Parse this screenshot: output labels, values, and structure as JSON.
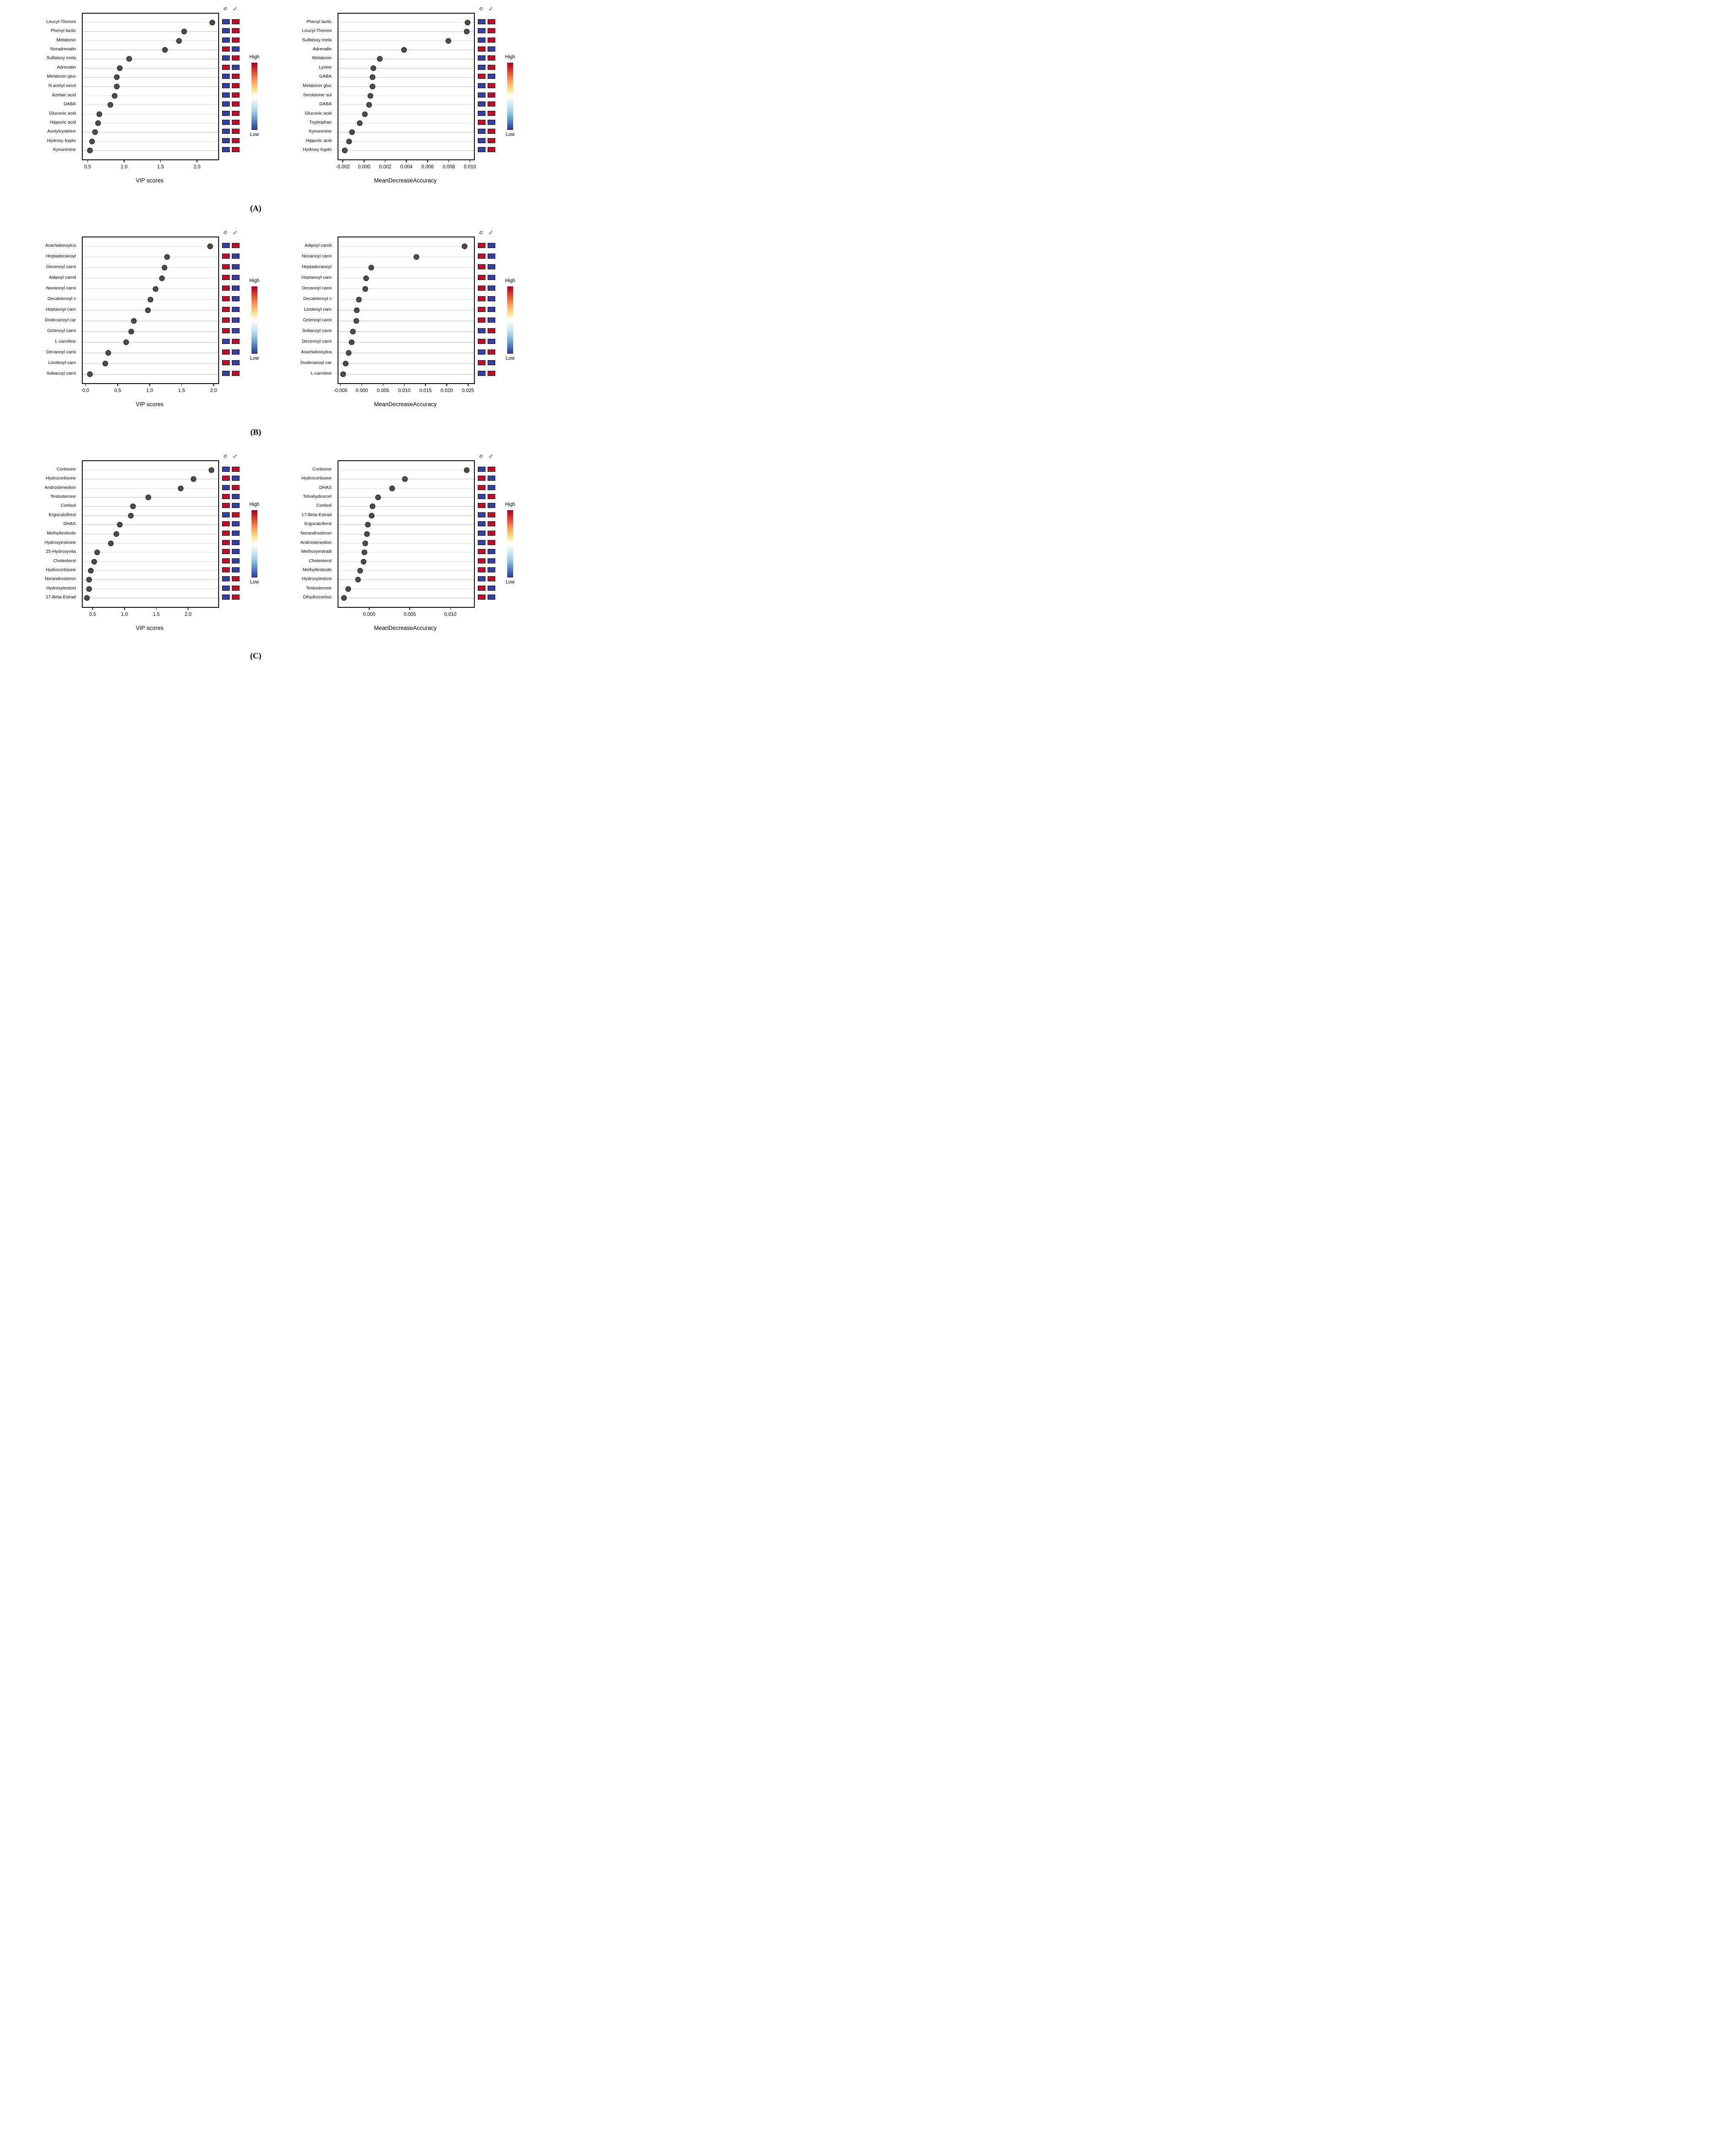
{
  "figure": {
    "background": "#ffffff"
  },
  "section_tags": [
    "(A)",
    "(B)",
    "(C)"
  ],
  "heat_columns": [
    "0",
    "1"
  ],
  "colorbar_labels": {
    "high": "High",
    "low": "Low"
  },
  "colors": {
    "dot_fill": "#4d4d4d",
    "dot_stroke": "#000000",
    "gridline": "#d7d7d7",
    "box_border": "#000000",
    "heat_red": "#c20c2c",
    "heat_blue": "#3540a5",
    "gradient": [
      "#a50026 0%",
      "#d73027 10%",
      "#f46d43 20%",
      "#fdae61 30%",
      "#fee090 40%",
      "#fbfbdc 47%",
      "#ffffff 52%",
      "#dff2f7 58%",
      "#abd9e9 70%",
      "#74add1 80%",
      "#4575b4 90%",
      "#313695 100%"
    ]
  },
  "chart_data": [
    {
      "type": "scatter",
      "section": "A",
      "side": "left",
      "xlabel": "VIP scores",
      "xlim": [
        0.42,
        2.28
      ],
      "ticks": [
        {
          "v": 0.5,
          "t": "0.5"
        },
        {
          "v": 1.0,
          "t": "1.0"
        },
        {
          "v": 1.5,
          "t": "1.5"
        },
        {
          "v": 2.0,
          "t": "2.0"
        }
      ],
      "categories": [
        "Leucyl-Threoni",
        "Phenyl lactic",
        "Melatonin",
        "Noradrenalin",
        "Sulfatoxy mela",
        "Adrenalin",
        "Melatonin gluc",
        "N acetyl serot",
        "Azelaic acid",
        "DABA",
        "Gluconic acid",
        "Hippuric acid",
        "Acetylcysteine",
        "Hydroxy trypto",
        "Kynurenine"
      ],
      "values": [
        2.2,
        1.81,
        1.74,
        1.55,
        1.06,
        0.93,
        0.89,
        0.89,
        0.86,
        0.8,
        0.65,
        0.63,
        0.59,
        0.55,
        0.52
      ],
      "heat": [
        [
          "blue",
          "red"
        ],
        [
          "blue",
          "red"
        ],
        [
          "blue",
          "red"
        ],
        [
          "red",
          "blue"
        ],
        [
          "blue",
          "red"
        ],
        [
          "red",
          "blue"
        ],
        [
          "blue",
          "red"
        ],
        [
          "blue",
          "red"
        ],
        [
          "blue",
          "red"
        ],
        [
          "blue",
          "red"
        ],
        [
          "blue",
          "red"
        ],
        [
          "blue",
          "red"
        ],
        [
          "blue",
          "red"
        ],
        [
          "blue",
          "red"
        ],
        [
          "blue",
          "red"
        ]
      ]
    },
    {
      "type": "scatter",
      "section": "A",
      "side": "right",
      "xlabel": "MeanDecreaseAccuracy",
      "xlim": [
        -0.0025,
        0.0103
      ],
      "ticks": [
        {
          "v": -0.002,
          "t": "-0.002"
        },
        {
          "v": 0.0,
          "t": "0.000"
        },
        {
          "v": 0.002,
          "t": "0.002"
        },
        {
          "v": 0.004,
          "t": "0.004"
        },
        {
          "v": 0.006,
          "t": "0.006"
        },
        {
          "v": 0.008,
          "t": "0.008"
        },
        {
          "v": 0.01,
          "t": "0.010"
        }
      ],
      "categories": [
        "Phenyl lactic",
        "Leucyl-Threoni",
        "Sulfatoxy mela",
        "Adrenalin",
        "Melatonin",
        "Lysine",
        "GABA",
        "Melatonin gluc",
        "Serotonine sul",
        "DABA",
        "Gluconic acid",
        "Tryptophan",
        "Kynurenine",
        "Hippuric acid",
        "Hydroxy trypto"
      ],
      "values": [
        0.0097,
        0.0096,
        0.0079,
        0.0037,
        0.0014,
        0.0008,
        0.0007,
        0.0007,
        0.0005,
        0.0004,
        0.0,
        -0.0005,
        -0.0012,
        -0.0015,
        -0.0019
      ],
      "heat": [
        [
          "blue",
          "red"
        ],
        [
          "blue",
          "red"
        ],
        [
          "blue",
          "red"
        ],
        [
          "red",
          "blue"
        ],
        [
          "blue",
          "red"
        ],
        [
          "blue",
          "red"
        ],
        [
          "red",
          "blue"
        ],
        [
          "blue",
          "red"
        ],
        [
          "blue",
          "red"
        ],
        [
          "blue",
          "red"
        ],
        [
          "blue",
          "red"
        ],
        [
          "red",
          "blue"
        ],
        [
          "blue",
          "red"
        ],
        [
          "blue",
          "red"
        ],
        [
          "blue",
          "red"
        ]
      ]
    },
    {
      "type": "scatter",
      "section": "B",
      "side": "left",
      "xlabel": "VIP scores",
      "xlim": [
        -0.06,
        2.06
      ],
      "ticks": [
        {
          "v": 0.0,
          "t": "0.0"
        },
        {
          "v": 0.5,
          "t": "0.5"
        },
        {
          "v": 1.0,
          "t": "1.0"
        },
        {
          "v": 1.5,
          "t": "1.5"
        },
        {
          "v": 2.0,
          "t": "2.0"
        }
      ],
      "categories": [
        "Arachidonoylca",
        "Heptadecanoyl",
        "Decenoyl carni",
        "Adipoyl carnit",
        "Nonanoyl carni",
        "Decatrienoyl c",
        "Heptanoyl carn",
        "Dodecanoyl car",
        "Octenoyl carni",
        "L-carnitine",
        "Decanoyl carni",
        "Linoleoyl carn",
        "Sebacoyl carni"
      ],
      "values": [
        1.93,
        1.26,
        1.22,
        1.18,
        1.08,
        1.0,
        0.96,
        0.74,
        0.7,
        0.62,
        0.34,
        0.29,
        0.05
      ],
      "heat": [
        [
          "blue",
          "red"
        ],
        [
          "red",
          "blue"
        ],
        [
          "red",
          "blue"
        ],
        [
          "red",
          "blue"
        ],
        [
          "red",
          "blue"
        ],
        [
          "red",
          "blue"
        ],
        [
          "red",
          "blue"
        ],
        [
          "red",
          "blue"
        ],
        [
          "red",
          "blue"
        ],
        [
          "blue",
          "red"
        ],
        [
          "red",
          "blue"
        ],
        [
          "red",
          "blue"
        ],
        [
          "blue",
          "red"
        ]
      ]
    },
    {
      "type": "scatter",
      "section": "B",
      "side": "right",
      "xlabel": "MeanDecreaseAccuracy",
      "xlim": [
        -0.0057,
        0.0262
      ],
      "ticks": [
        {
          "v": -0.005,
          "t": "-0.005"
        },
        {
          "v": 0.0,
          "t": "0.000"
        },
        {
          "v": 0.005,
          "t": "0.005"
        },
        {
          "v": 0.01,
          "t": "0.010"
        },
        {
          "v": 0.015,
          "t": "0.015"
        },
        {
          "v": 0.02,
          "t": "0.020"
        },
        {
          "v": 0.025,
          "t": "0.025"
        }
      ],
      "categories": [
        "Adipoyl carnit",
        "Nonanoyl carni",
        "Heptadecanoyl",
        "Heptanoyl carn",
        "Decanoyl carni",
        "Decatrienoyl c",
        "Linoleoyl carn",
        "Octenoyl carni",
        "Sebacoyl carni",
        "Decenoyl carni",
        "Arachidonoylca",
        "Dodecanoyl car",
        "L-carnitine"
      ],
      "values": [
        0.024,
        0.0127,
        0.002,
        0.0008,
        0.0006,
        -0.0009,
        -0.0014,
        -0.0015,
        -0.0023,
        -0.0026,
        -0.0033,
        -0.004,
        -0.0046
      ],
      "heat": [
        [
          "red",
          "blue"
        ],
        [
          "red",
          "blue"
        ],
        [
          "red",
          "blue"
        ],
        [
          "red",
          "blue"
        ],
        [
          "red",
          "blue"
        ],
        [
          "red",
          "blue"
        ],
        [
          "red",
          "blue"
        ],
        [
          "red",
          "blue"
        ],
        [
          "blue",
          "red"
        ],
        [
          "red",
          "blue"
        ],
        [
          "blue",
          "red"
        ],
        [
          "red",
          "blue"
        ],
        [
          "blue",
          "red"
        ]
      ]
    },
    {
      "type": "scatter",
      "section": "C",
      "side": "left",
      "xlabel": "VIP scores",
      "xlim": [
        0.33,
        2.46
      ],
      "ticks": [
        {
          "v": 0.5,
          "t": "0.5"
        },
        {
          "v": 1.0,
          "t": "1.0"
        },
        {
          "v": 1.5,
          "t": "1.5"
        },
        {
          "v": 2.0,
          "t": "2.0"
        }
      ],
      "categories": [
        "Cortisone",
        "Hydrocortisone",
        "Androstenedion",
        "Testosterone",
        "Cortisol",
        "Ergocalciferol",
        "DHAS",
        "Methyltestoste",
        "Hydroxyestrone",
        "25-Hydroxyvita",
        "Cholesterol",
        "Hydrocortisone",
        "Norandrosteron",
        "Hydroxytestost",
        "17-Beta-Estrad"
      ],
      "values": [
        2.35,
        2.07,
        1.87,
        1.36,
        1.12,
        1.09,
        0.91,
        0.86,
        0.77,
        0.56,
        0.51,
        0.46,
        0.43,
        0.43,
        0.4
      ],
      "heat": [
        [
          "blue",
          "red"
        ],
        [
          "red",
          "blue"
        ],
        [
          "blue",
          "red"
        ],
        [
          "red",
          "blue"
        ],
        [
          "red",
          "blue"
        ],
        [
          "blue",
          "red"
        ],
        [
          "red",
          "blue"
        ],
        [
          "red",
          "blue"
        ],
        [
          "red",
          "blue"
        ],
        [
          "red",
          "blue"
        ],
        [
          "red",
          "blue"
        ],
        [
          "red",
          "blue"
        ],
        [
          "blue",
          "red"
        ],
        [
          "blue",
          "red"
        ],
        [
          "blue",
          "red"
        ]
      ]
    },
    {
      "type": "scatter",
      "section": "C",
      "side": "right",
      "xlabel": "MeanDecreaseAccuracy",
      "xlim": [
        -0.0039,
        0.0128
      ],
      "ticks": [
        {
          "v": 0.0,
          "t": "0.000"
        },
        {
          "v": 0.005,
          "t": "0.005"
        },
        {
          "v": 0.01,
          "t": "0.010"
        }
      ],
      "categories": [
        "Cortisone",
        "Hydrocortisone",
        "DHAS",
        "Tetrahydrocort",
        "Cortisol",
        "17-Beta-Estrad",
        "Ergocalciferol",
        "Norandrosteron",
        "Androstenedion",
        "Methoxyestradi",
        "Cholesterol",
        "Methyltestoste",
        "Hydroxytestost",
        "Testosterone",
        "Dihydrocortiso"
      ],
      "values": [
        0.0119,
        0.0043,
        0.0027,
        0.001,
        0.0003,
        0.0002,
        -0.0003,
        -0.0004,
        -0.0006,
        -0.0007,
        -0.0008,
        -0.0012,
        -0.0015,
        -0.0027,
        -0.0032
      ],
      "heat": [
        [
          "blue",
          "red"
        ],
        [
          "red",
          "blue"
        ],
        [
          "red",
          "blue"
        ],
        [
          "blue",
          "red"
        ],
        [
          "red",
          "blue"
        ],
        [
          "blue",
          "red"
        ],
        [
          "blue",
          "red"
        ],
        [
          "blue",
          "red"
        ],
        [
          "blue",
          "red"
        ],
        [
          "red",
          "blue"
        ],
        [
          "red",
          "blue"
        ],
        [
          "red",
          "blue"
        ],
        [
          "blue",
          "red"
        ],
        [
          "red",
          "blue"
        ],
        [
          "red",
          "blue"
        ]
      ]
    }
  ]
}
